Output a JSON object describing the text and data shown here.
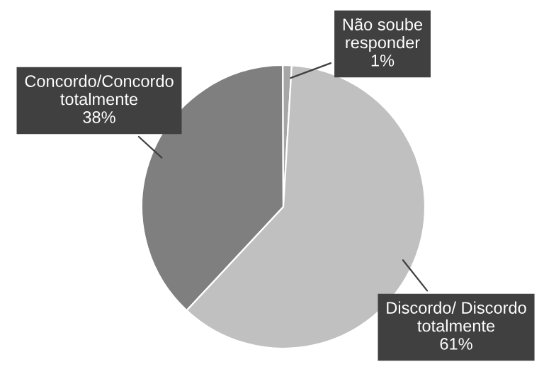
{
  "chart_data": {
    "type": "pie",
    "categories": [
      "Concordo/Concordo\ntotalmente",
      "Não soube\nresponder",
      "Discordo/ Discordo\ntotalmente"
    ],
    "values": [
      38,
      1,
      61
    ],
    "value_labels": [
      "38%",
      "1%",
      "61%"
    ],
    "colors": [
      "#7f7f7f",
      "#a6a6a6",
      "#c0c0c0"
    ]
  }
}
